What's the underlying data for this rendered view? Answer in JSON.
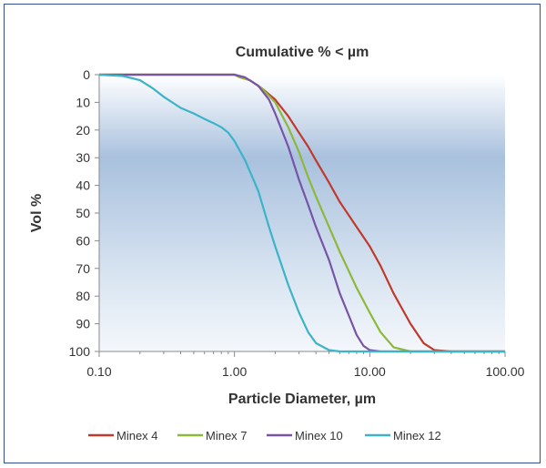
{
  "chart_data": {
    "type": "line",
    "title": "Cumulative % < µm",
    "xlabel": "Particle Diameter, µm",
    "ylabel": "Vol %",
    "x_scale": "log",
    "xlim": [
      0.1,
      100
    ],
    "ylim": [
      0,
      100
    ],
    "y_reversed": true,
    "x_tick_values": [
      0.1,
      1,
      10,
      100
    ],
    "x_tick_labels": [
      "0.10",
      "1.00",
      "10.00",
      "100.00"
    ],
    "y_ticks": [
      0,
      10,
      20,
      30,
      40,
      50,
      60,
      70,
      80,
      90,
      100
    ],
    "grid": false,
    "legend_position": "bottom",
    "plot_background": "blue gradient",
    "series": [
      {
        "name": "Minex 4",
        "color": "#c0392b",
        "points": [
          [
            0.1,
            0
          ],
          [
            1.0,
            0
          ],
          [
            1.1,
            1
          ],
          [
            1.3,
            2
          ],
          [
            1.6,
            5
          ],
          [
            2.0,
            9
          ],
          [
            2.5,
            15
          ],
          [
            3.0,
            21
          ],
          [
            3.5,
            26
          ],
          [
            4.0,
            31
          ],
          [
            5.0,
            39
          ],
          [
            6.0,
            46
          ],
          [
            8.0,
            55
          ],
          [
            10.0,
            62
          ],
          [
            12.0,
            69
          ],
          [
            15.0,
            79
          ],
          [
            20.0,
            90
          ],
          [
            25.0,
            97
          ],
          [
            30.0,
            99.5
          ],
          [
            40.0,
            100
          ],
          [
            100.0,
            100
          ]
        ]
      },
      {
        "name": "Minex 7",
        "color": "#8db83a",
        "points": [
          [
            0.1,
            0
          ],
          [
            1.0,
            0
          ],
          [
            1.1,
            1
          ],
          [
            1.3,
            2
          ],
          [
            1.6,
            5
          ],
          [
            2.0,
            10
          ],
          [
            2.5,
            19
          ],
          [
            3.0,
            28
          ],
          [
            3.5,
            37
          ],
          [
            4.0,
            44
          ],
          [
            5.0,
            55
          ],
          [
            6.0,
            64
          ],
          [
            8.0,
            77
          ],
          [
            10.0,
            86
          ],
          [
            12.0,
            93
          ],
          [
            15.0,
            98.5
          ],
          [
            20.0,
            100
          ],
          [
            100.0,
            100
          ]
        ]
      },
      {
        "name": "Minex 10",
        "color": "#7854a6",
        "points": [
          [
            0.1,
            0
          ],
          [
            1.0,
            0
          ],
          [
            1.2,
            1
          ],
          [
            1.5,
            4
          ],
          [
            1.8,
            9
          ],
          [
            2.0,
            14
          ],
          [
            2.5,
            26
          ],
          [
            3.0,
            38
          ],
          [
            3.5,
            47
          ],
          [
            4.0,
            55
          ],
          [
            5.0,
            67
          ],
          [
            6.0,
            79
          ],
          [
            7.0,
            87
          ],
          [
            8.0,
            94
          ],
          [
            9.0,
            98
          ],
          [
            10.0,
            99.5
          ],
          [
            12.0,
            100
          ],
          [
            100.0,
            100
          ]
        ]
      },
      {
        "name": "Minex 12",
        "color": "#3cb3c7",
        "points": [
          [
            0.1,
            0
          ],
          [
            0.15,
            0.5
          ],
          [
            0.2,
            2
          ],
          [
            0.25,
            5
          ],
          [
            0.3,
            8
          ],
          [
            0.4,
            12
          ],
          [
            0.5,
            14
          ],
          [
            0.6,
            16
          ],
          [
            0.7,
            17.5
          ],
          [
            0.8,
            19
          ],
          [
            0.9,
            21
          ],
          [
            1.0,
            24
          ],
          [
            1.2,
            31
          ],
          [
            1.5,
            42
          ],
          [
            1.8,
            55
          ],
          [
            2.0,
            62
          ],
          [
            2.5,
            76
          ],
          [
            3.0,
            86
          ],
          [
            3.5,
            93
          ],
          [
            4.0,
            97
          ],
          [
            5.0,
            99.5
          ],
          [
            6.0,
            100
          ],
          [
            100.0,
            100
          ]
        ]
      }
    ]
  }
}
